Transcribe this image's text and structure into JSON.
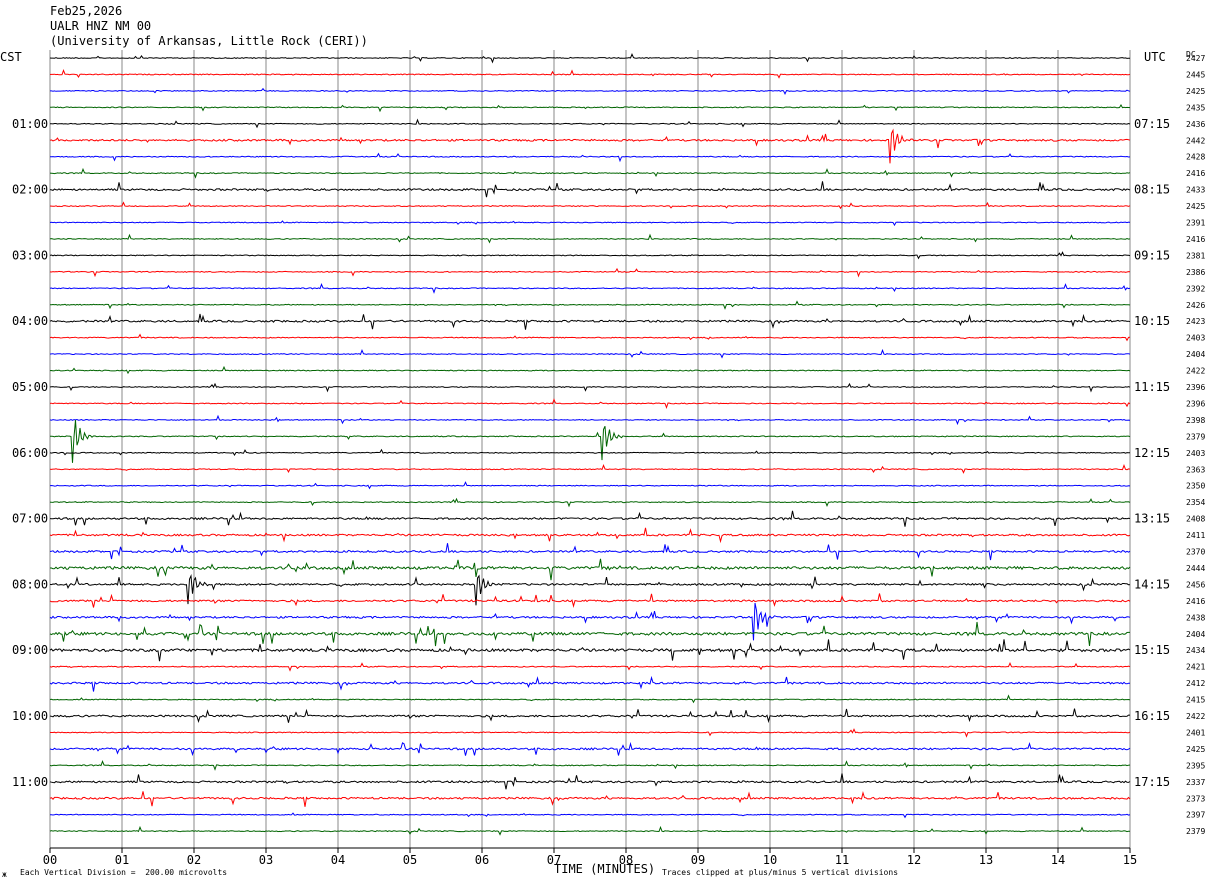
{
  "header": {
    "date": "Feb25,2026",
    "station": "UALR HNZ NM 00",
    "network": "(University of Arkansas, Little Rock (CERI))"
  },
  "left_axis_label": "CST",
  "right_axis_label": "UTC",
  "dc_label": "DC",
  "footer": {
    "scale_note": "Each Vertical Division =  200.00 microvolts",
    "xlabel": "TIME (MINUTES)",
    "clip_note": "Traces clipped at plus/minus 5 vertical divisions",
    "logo_mark": "ж"
  },
  "colors": {
    "trace_cycle": [
      "#000000",
      "#ff0000",
      "#0000ff",
      "#006400"
    ],
    "grid": "#888888"
  },
  "chart_data": {
    "type": "line",
    "title": "UALR HNZ NM 00",
    "xlabel": "TIME (MINUTES)",
    "xlim": [
      0,
      15
    ],
    "x_ticks": [
      "00",
      "01",
      "02",
      "03",
      "04",
      "05",
      "06",
      "07",
      "08",
      "09",
      "10",
      "11",
      "12",
      "13",
      "14",
      "15"
    ],
    "rows": 48,
    "left_time_labels": [
      {
        "row": 4,
        "label": "01:00"
      },
      {
        "row": 8,
        "label": "02:00"
      },
      {
        "row": 12,
        "label": "03:00"
      },
      {
        "row": 16,
        "label": "04:00"
      },
      {
        "row": 20,
        "label": "05:00"
      },
      {
        "row": 24,
        "label": "06:00"
      },
      {
        "row": 28,
        "label": "07:00"
      },
      {
        "row": 32,
        "label": "08:00"
      },
      {
        "row": 36,
        "label": "09:00"
      },
      {
        "row": 40,
        "label": "10:00"
      },
      {
        "row": 44,
        "label": "11:00"
      }
    ],
    "right_time_labels": [
      {
        "row": 4,
        "label": "07:15"
      },
      {
        "row": 8,
        "label": "08:15"
      },
      {
        "row": 12,
        "label": "09:15"
      },
      {
        "row": 16,
        "label": "10:15"
      },
      {
        "row": 20,
        "label": "11:15"
      },
      {
        "row": 24,
        "label": "12:15"
      },
      {
        "row": 28,
        "label": "13:15"
      },
      {
        "row": 32,
        "label": "14:15"
      },
      {
        "row": 36,
        "label": "15:15"
      },
      {
        "row": 40,
        "label": "16:15"
      },
      {
        "row": 44,
        "label": "17:15"
      }
    ],
    "dc_offsets": [
      "2427",
      "2445",
      "2425",
      "2435",
      "2436",
      "2442",
      "2428",
      "2416",
      "2433",
      "2425",
      "2391",
      "2416",
      "2381",
      "2386",
      "2392",
      "2426",
      "2423",
      "2403",
      "2404",
      "2422",
      "2396",
      "2396",
      "2398",
      "2379",
      "2403",
      "2363",
      "2350",
      "2354",
      "2408",
      "2411",
      "2370",
      "2444",
      "2456",
      "2416",
      "2438",
      "2404",
      "2434",
      "2421",
      "2412",
      "2415",
      "2422",
      "2401",
      "2425",
      "2395",
      "2337",
      "2373",
      "2397",
      "2379"
    ],
    "trace_activity": [
      1,
      1,
      1,
      1,
      1,
      2,
      1,
      1,
      2,
      1,
      1,
      1,
      1,
      1,
      1,
      1,
      2,
      1,
      1,
      1,
      1,
      1,
      1,
      1,
      1,
      1,
      1,
      1,
      2,
      2,
      2,
      3,
      2,
      2,
      2,
      3,
      3,
      1,
      2,
      1,
      2,
      1,
      2,
      1,
      2,
      2,
      1,
      1
    ],
    "events": [
      {
        "row": 5,
        "minute": 11.65,
        "amplitude": 3.5
      },
      {
        "row": 23,
        "minute": 0.3,
        "amplitude": 4
      },
      {
        "row": 23,
        "minute": 7.65,
        "amplitude": 3.5
      },
      {
        "row": 32,
        "minute": 1.9,
        "amplitude": 3
      },
      {
        "row": 32,
        "minute": 5.9,
        "amplitude": 3
      },
      {
        "row": 34,
        "minute": 9.75,
        "amplitude": 4
      }
    ]
  }
}
